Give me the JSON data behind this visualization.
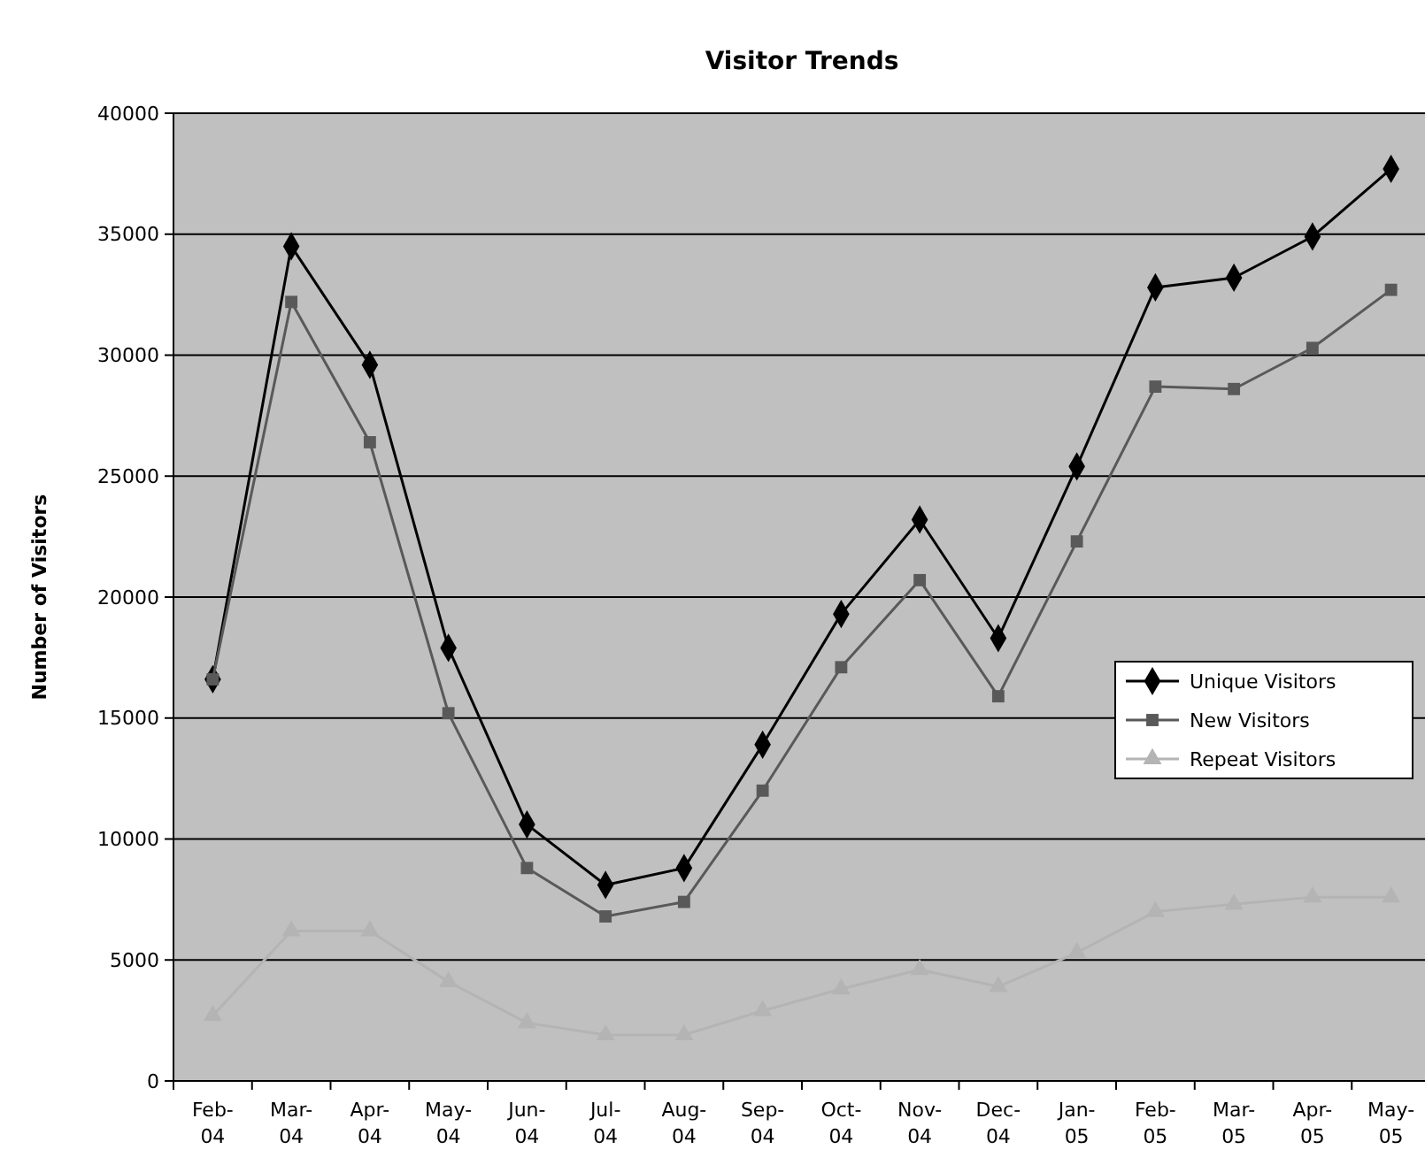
{
  "chart_data": {
    "type": "line",
    "title": "Visitor Trends",
    "ylabel": "Number of Visitors",
    "categories": [
      "Feb-04",
      "Mar-04",
      "Apr-04",
      "May-04",
      "Jun-04",
      "Jul-04",
      "Aug-04",
      "Sep-04",
      "Oct-04",
      "Nov-04",
      "Dec-04",
      "Jan-05",
      "Feb-05",
      "Mar-05",
      "Apr-05",
      "May-05"
    ],
    "ylim": [
      0,
      40000
    ],
    "yticks": [
      0,
      5000,
      10000,
      15000,
      20000,
      25000,
      30000,
      35000,
      40000
    ],
    "grid": "y",
    "legend": "right",
    "series": [
      {
        "name": "Unique Visitors",
        "color": "#000000",
        "marker": "diamond",
        "values": [
          16600,
          34500,
          29600,
          17900,
          10600,
          8100,
          8800,
          13900,
          19300,
          23200,
          18300,
          25400,
          32800,
          33200,
          34900,
          37700
        ]
      },
      {
        "name": "New Visitors",
        "color": "#595959",
        "marker": "square",
        "values": [
          16600,
          32200,
          26400,
          15200,
          8800,
          6800,
          7400,
          12000,
          17100,
          20700,
          15900,
          22300,
          28700,
          28600,
          30300,
          32700
        ]
      },
      {
        "name": "Repeat Visitors",
        "color": "#b4b4b4",
        "marker": "triangle",
        "values": [
          2700,
          6200,
          6200,
          4100,
          2400,
          1900,
          1900,
          2900,
          3800,
          4600,
          3900,
          5300,
          7000,
          7300,
          7600,
          7600
        ]
      }
    ]
  }
}
